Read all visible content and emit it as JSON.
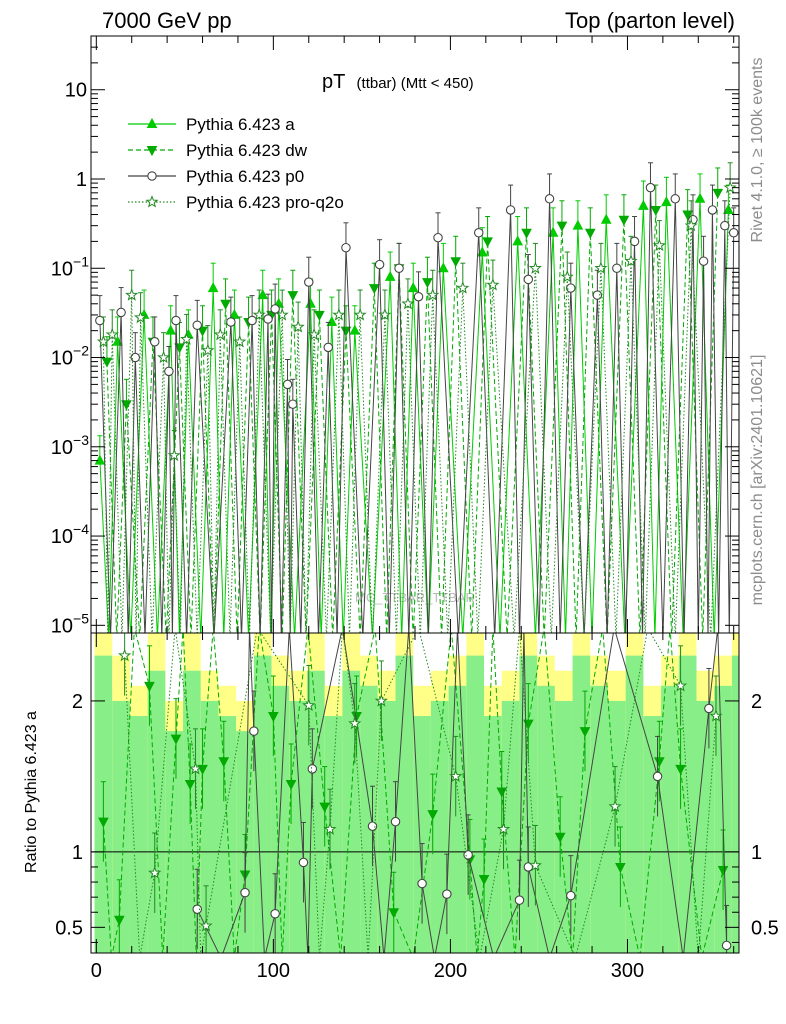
{
  "header": {
    "left": "7000 GeV pp",
    "right": "Top (parton level)"
  },
  "side_labels": {
    "rivet": "Rivet 4.1.0, ≥ 100k events",
    "mcplots": "mcplots.cern.ch [arXiv:2401.10621]"
  },
  "watermark": "MC_TTBAR_TTBAR",
  "colors": {
    "pythia_a": "#00cc00",
    "pythia_dw": "#00aa00",
    "pythia_p0": "#444444",
    "pythia_proq2o": "#228822",
    "band_yellow": "#ffff88",
    "band_green": "#88ee88"
  },
  "chart_data": [
    {
      "type": "line",
      "title": "pT (ttbar) (Mtt < 450)",
      "title_main": "pT",
      "title_sub": "(ttbar) (Mtt < 450)",
      "xlabel": "",
      "ylabel": "",
      "yscale": "log",
      "xlim": [
        -3,
        363
      ],
      "ylim": [
        8.2e-06,
        40
      ],
      "y_ticks": [
        {
          "value": 1e-05,
          "label": "10^-5"
        },
        {
          "value": 0.0001,
          "label": "10^-4"
        },
        {
          "value": 0.001,
          "label": "10^-3"
        },
        {
          "value": 0.01,
          "label": "10^-2"
        },
        {
          "value": 0.1,
          "label": "10^-1"
        },
        {
          "value": 1,
          "label": "1"
        },
        {
          "value": 10,
          "label": "10"
        }
      ],
      "legend_position": "top-left",
      "series": [
        {
          "name": "Pythia 6.423 a",
          "line": "solid",
          "marker": "triangle-up",
          "x": [
            2,
            12,
            27,
            42,
            52,
            66,
            78,
            94,
            103,
            121,
            133,
            146,
            166,
            179,
            196,
            218,
            238,
            258,
            272,
            288,
            309,
            322,
            341,
            357
          ],
          "y": [
            0.0007,
            0.015,
            0.03,
            0.02,
            0.018,
            0.06,
            0.03,
            0.05,
            0.04,
            0.04,
            0.025,
            0.02,
            0.08,
            0.06,
            0.1,
            0.15,
            0.2,
            0.25,
            0.3,
            0.35,
            0.5,
            0.55,
            0.6,
            0.45
          ]
        },
        {
          "name": "Pythia 6.423 dw",
          "line": "dashed",
          "marker": "triangle-down",
          "x": [
            6,
            17,
            32,
            47,
            60,
            73,
            86,
            99,
            111,
            126,
            141,
            157,
            171,
            187,
            203,
            221,
            243,
            263,
            279,
            298,
            316,
            334,
            351
          ],
          "y": [
            0.009,
            0.003,
            0.015,
            0.013,
            0.02,
            0.04,
            0.025,
            0.03,
            0.05,
            0.03,
            0.02,
            0.06,
            0.1,
            0.07,
            0.12,
            0.2,
            0.25,
            0.3,
            0.25,
            0.35,
            0.45,
            0.4,
            0.7
          ]
        },
        {
          "name": "Pythia 6.423 p0",
          "line": "solid",
          "marker": "circle-open",
          "x": [
            2,
            14,
            22,
            33,
            41,
            45,
            57,
            76,
            88,
            97,
            101,
            108,
            111,
            120,
            131,
            141,
            160,
            171,
            182,
            193,
            216,
            234,
            244,
            256,
            268,
            283,
            294,
            304,
            313,
            327,
            337,
            343,
            348,
            355,
            360
          ],
          "y": [
            0.026,
            0.032,
            0.01,
            0.015,
            0.007,
            0.026,
            0.023,
            0.025,
            0.026,
            0.027,
            0.035,
            0.005,
            0.003,
            0.07,
            0.013,
            0.17,
            0.11,
            0.1,
            0.048,
            0.22,
            0.25,
            0.45,
            0.075,
            0.6,
            0.06,
            0.05,
            0.1,
            0.2,
            0.8,
            0.6,
            0.35,
            0.12,
            0.45,
            0.3,
            0.25
          ]
        },
        {
          "name": "Pythia 6.423 pro-q2o",
          "line": "dotted",
          "marker": "star-open",
          "x": [
            4,
            9,
            20,
            25,
            38,
            44,
            51,
            63,
            70,
            81,
            92,
            105,
            114,
            123,
            137,
            149,
            163,
            176,
            190,
            207,
            224,
            248,
            266,
            285,
            302,
            318,
            336,
            358
          ],
          "y": [
            0.015,
            0.018,
            0.05,
            0.028,
            0.01,
            0.0008,
            0.016,
            0.012,
            0.018,
            0.015,
            0.03,
            0.03,
            0.022,
            0.018,
            0.03,
            0.03,
            0.03,
            0.04,
            0.05,
            0.06,
            0.065,
            0.1,
            0.08,
            0.1,
            0.12,
            0.18,
            0.3,
            0.8
          ]
        }
      ]
    },
    {
      "type": "line",
      "title": "",
      "xlabel": "",
      "ylabel": "Ratio to Pythia 6.423 a",
      "xlim": [
        -3,
        363
      ],
      "ylim": [
        0.33,
        2.45
      ],
      "y_ticks": [
        {
          "value": 0.5,
          "label": "0.5"
        },
        {
          "value": 1,
          "label": "1"
        },
        {
          "value": 2,
          "label": "2"
        }
      ],
      "x_ticks": [
        {
          "value": 0,
          "label": "0"
        },
        {
          "value": 100,
          "label": "100"
        },
        {
          "value": 200,
          "label": "200"
        },
        {
          "value": 300,
          "label": "300"
        }
      ],
      "reference_line": 1,
      "bands": {
        "x": [
          0,
          10,
          20,
          30,
          40,
          50,
          60,
          70,
          80,
          90,
          100,
          110,
          120,
          130,
          140,
          150,
          160,
          170,
          180,
          190,
          200,
          210,
          220,
          230,
          240,
          250,
          260,
          270,
          280,
          290,
          300,
          310,
          320,
          330,
          340,
          350,
          360
        ],
        "yellow_high": [
          2.45,
          2.3,
          2.1,
          2.45,
          2.0,
          2.45,
          2.2,
          2.1,
          2.0,
          2.45,
          2.3,
          2.2,
          2.45,
          2.1,
          2.45,
          2.3,
          2.2,
          2.45,
          2.1,
          2.2,
          2.3,
          2.45,
          2.1,
          2.2,
          2.45,
          2.3,
          2.2,
          2.45,
          2.3,
          2.2,
          2.45,
          2.1,
          2.3,
          2.45,
          2.2,
          2.3,
          2.45
        ],
        "green_high": [
          2.3,
          2.0,
          1.9,
          2.2,
          1.8,
          2.2,
          2.0,
          1.9,
          1.8,
          2.3,
          2.1,
          2.0,
          2.2,
          1.9,
          2.2,
          2.1,
          2.0,
          2.3,
          1.9,
          2.0,
          2.1,
          2.3,
          1.9,
          2.0,
          2.3,
          2.1,
          2.0,
          2.3,
          2.1,
          2.0,
          2.3,
          1.9,
          2.1,
          2.3,
          2.0,
          2.1,
          2.3
        ],
        "green_low": [
          0.33,
          0.33,
          0.33,
          0.33,
          0.33,
          0.33,
          0.33,
          0.33,
          0.33,
          0.33,
          0.33,
          0.33,
          0.33,
          0.33,
          0.33,
          0.33,
          0.33,
          0.33,
          0.33,
          0.33,
          0.33,
          0.33,
          0.33,
          0.33,
          0.33,
          0.33,
          0.33,
          0.33,
          0.33,
          0.33,
          0.33,
          0.33,
          0.33,
          0.33,
          0.33,
          0.33,
          0.33
        ]
      },
      "series": [
        {
          "name": "Pythia 6.423 dw",
          "line": "dashed",
          "marker": "triangle-down",
          "x": [
            4,
            13,
            30,
            45,
            53,
            60,
            72,
            84,
            100,
            110,
            129,
            147,
            168,
            190,
            211,
            219,
            229,
            244,
            262,
            276,
            296,
            318,
            330,
            354
          ],
          "y": [
            1.2,
            0.55,
            2.1,
            1.75,
            1.45,
            1.55,
            1.6,
            0.85,
            1.9,
            1.45,
            1.3,
            1.9,
            0.6,
            1.25,
            0.95,
            0.82,
            1.4,
            1.85,
            1.1,
            1.8,
            0.9,
            1.6,
            1.55,
            0.88
          ]
        },
        {
          "name": "Pythia 6.423 p0",
          "line": "solid",
          "marker": "circle-open",
          "x": [
            57,
            84,
            89,
            101,
            117,
            122,
            156,
            169,
            184,
            198,
            210,
            239,
            244,
            268,
            317,
            346,
            356
          ],
          "y": [
            0.62,
            0.73,
            1.8,
            0.59,
            0.93,
            1.55,
            1.17,
            1.2,
            0.79,
            0.72,
            0.98,
            0.68,
            0.9,
            0.71,
            1.5,
            1.95,
            0.38
          ]
        },
        {
          "name": "Pythia 6.423 pro-q2o",
          "line": "dotted",
          "marker": "star-open",
          "x": [
            16,
            33,
            56,
            62,
            120,
            132,
            146,
            161,
            203,
            230,
            248,
            293,
            330,
            350
          ],
          "y": [
            2.3,
            0.86,
            1.55,
            0.51,
            1.97,
            1.15,
            1.85,
            2.0,
            1.5,
            1.15,
            0.91,
            1.3,
            2.1,
            1.9
          ]
        }
      ]
    }
  ]
}
